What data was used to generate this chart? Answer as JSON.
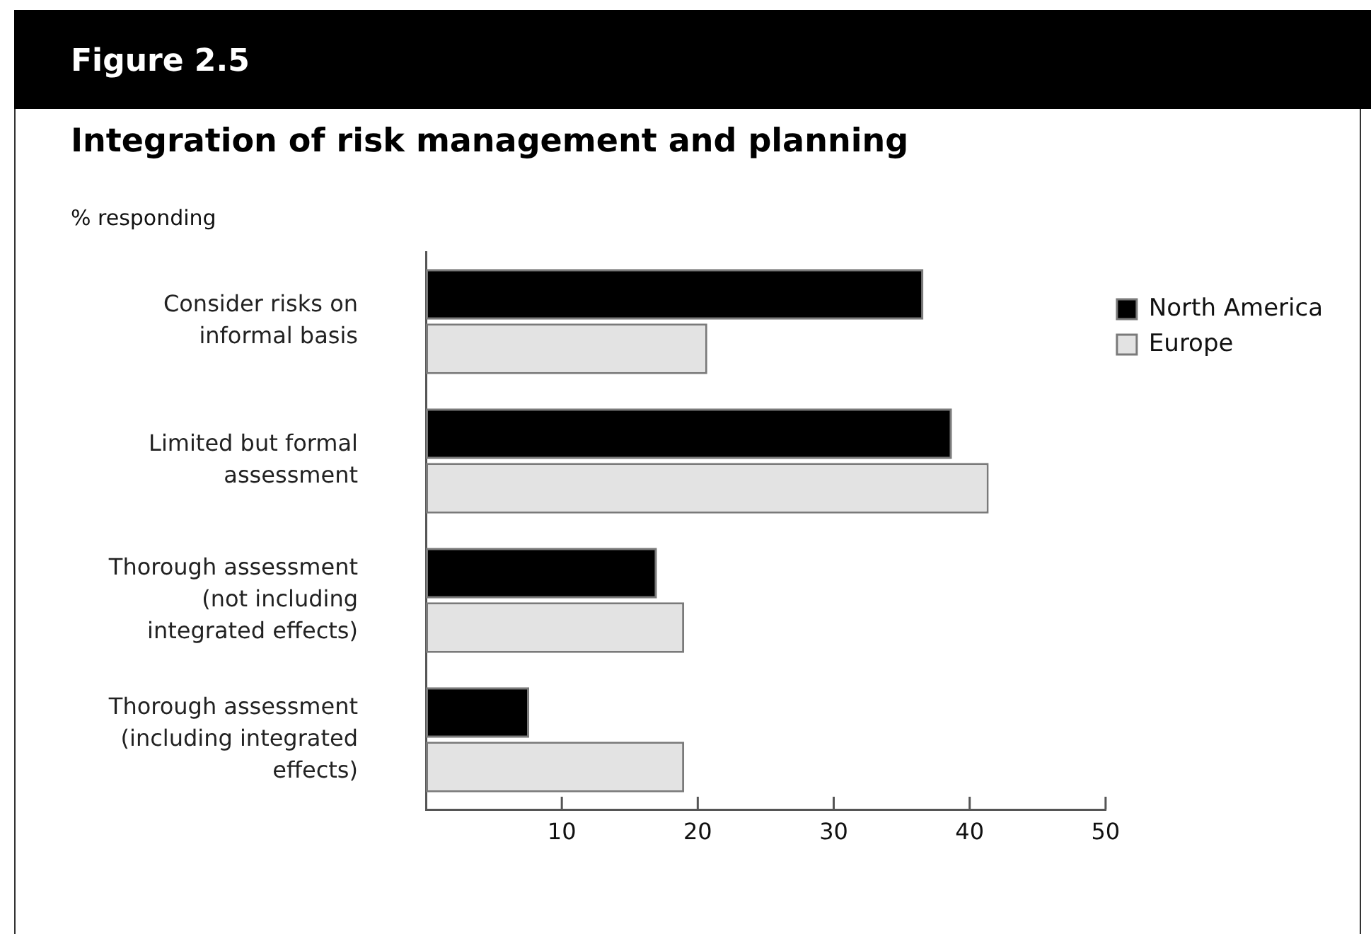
{
  "chart_data": {
    "type": "bar",
    "orientation": "horizontal",
    "title": "Figure 2.5",
    "subtitle": "Integration of risk management and planning",
    "xlabel": "% responding",
    "categories": [
      "Consider risks on informal basis",
      "Limited but formal assessment",
      "Thorough assessment (not including integrated effects)",
      "Thorough assessment (including integrated effects)"
    ],
    "series": [
      {
        "name": "North America",
        "color": "#000000",
        "values": [
          36.6,
          38.7,
          17,
          7.6
        ]
      },
      {
        "name": "Europe",
        "color": "#e3e3e3",
        "values": [
          20.7,
          41.4,
          19,
          19
        ]
      }
    ],
    "xlim": [
      0,
      50
    ],
    "xticks": [
      10,
      20,
      30,
      40,
      50
    ],
    "legend": "top right"
  }
}
